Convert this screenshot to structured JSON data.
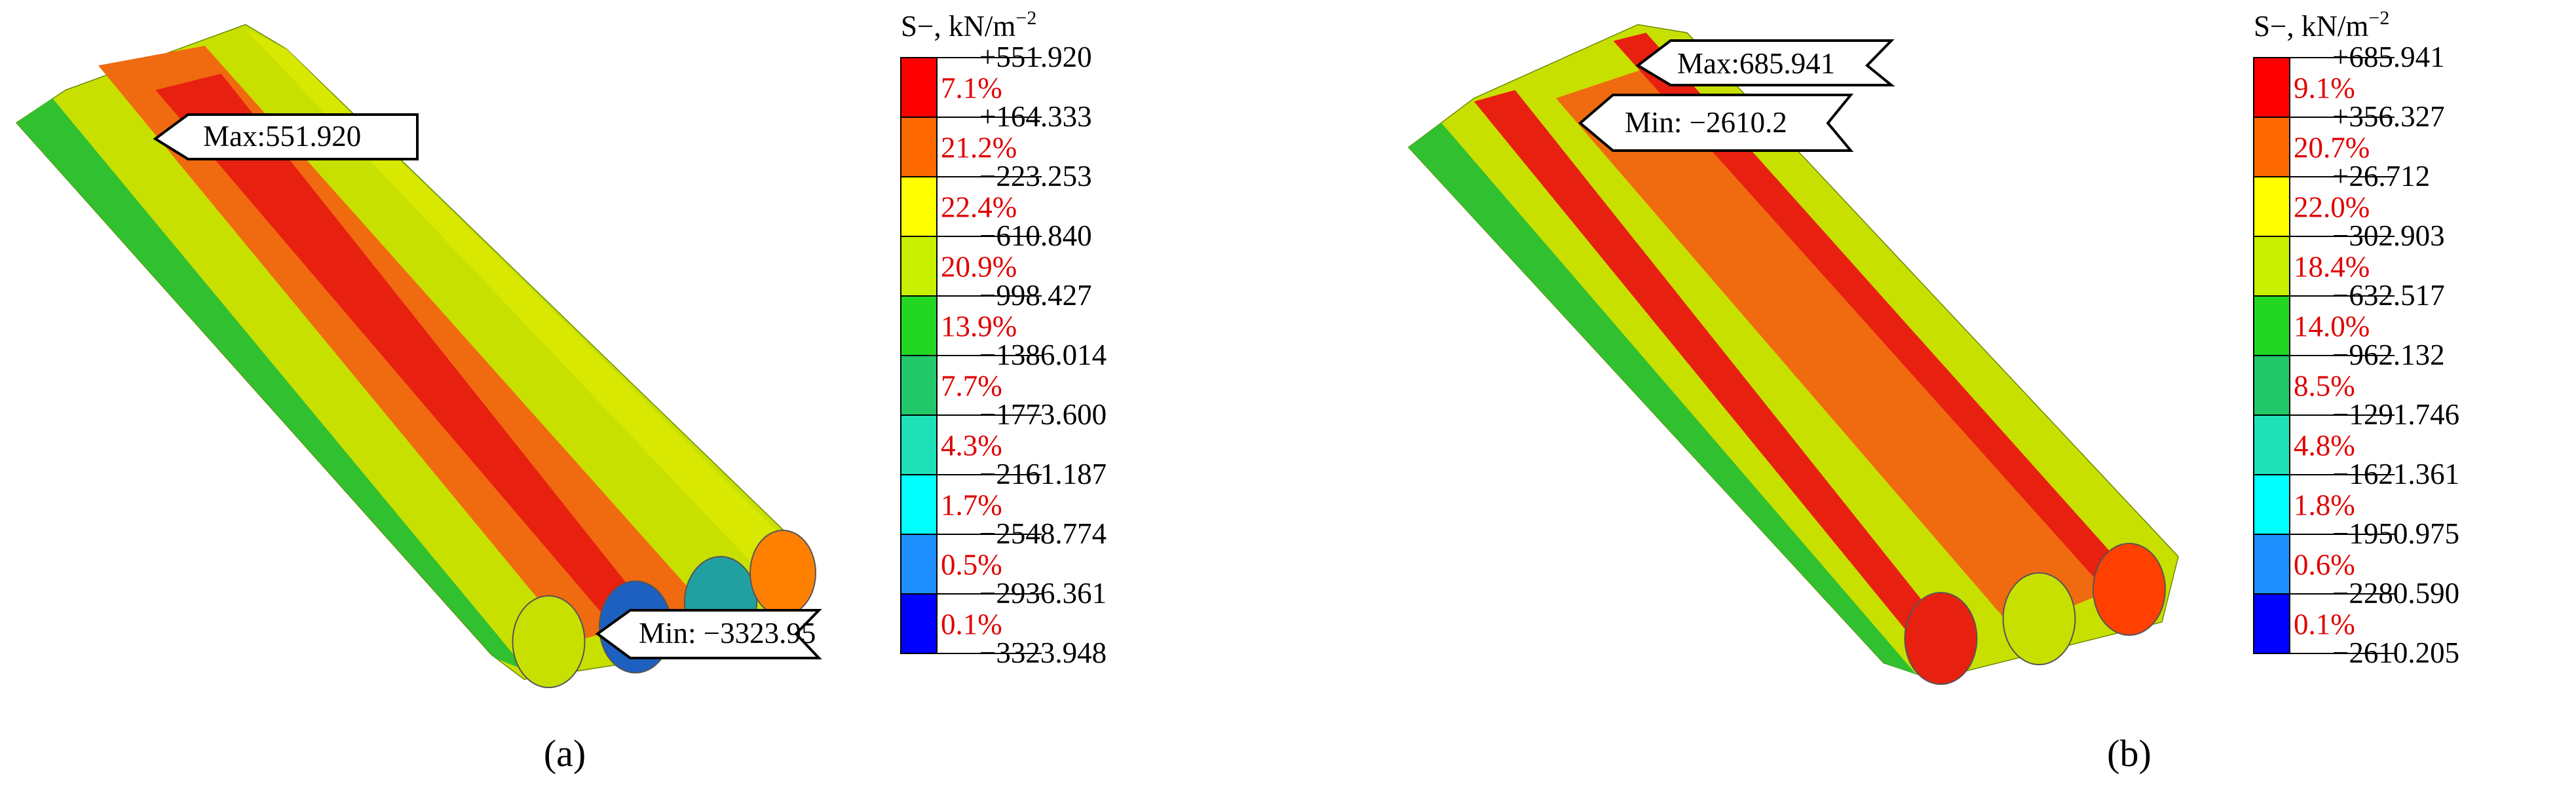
{
  "panels": [
    {
      "legend": {
        "title": "S−, kN/m",
        "title_exponent": "−2",
        "labels": [
          "+551.920",
          "+164.333",
          "−223.253",
          "−610.840",
          "−998.427",
          "−1386.014",
          "−1773.600",
          "−2161.187",
          "−2548.774",
          "−2936.361",
          "−3323.948"
        ],
        "percentages": [
          "7.1%",
          "21.2%",
          "22.4%",
          "20.9%",
          "13.9%",
          "7.7%",
          "4.3%",
          "1.7%",
          "0.5%",
          "0.1%"
        ]
      },
      "max_label": "Max:551.920",
      "min_label": "Min: −3323.95",
      "caption": "(a)"
    },
    {
      "legend": {
        "title": "S−, kN/m",
        "title_exponent": "−2",
        "labels": [
          "+685.941",
          "+356.327",
          "+26.712",
          "−302.903",
          "−632.517",
          "−962.132",
          "−1291.746",
          "−1621.361",
          "−1950.975",
          "−2280.590",
          "−2610.205"
        ],
        "percentages": [
          "9.1%",
          "20.7%",
          "22.0%",
          "18.4%",
          "14.0%",
          "8.5%",
          "4.8%",
          "1.8%",
          "0.6%",
          "0.1%"
        ]
      },
      "max_label": "Max:685.941",
      "min_label": "Min: −2610.2",
      "caption": "(b)"
    }
  ],
  "band_colors": [
    "#ff0000",
    "#ff6a00",
    "#ffff00",
    "#c8f000",
    "#22d622",
    "#22c86a",
    "#20e0b8",
    "#00ffff",
    "#1e90ff",
    "#0000ff"
  ]
}
